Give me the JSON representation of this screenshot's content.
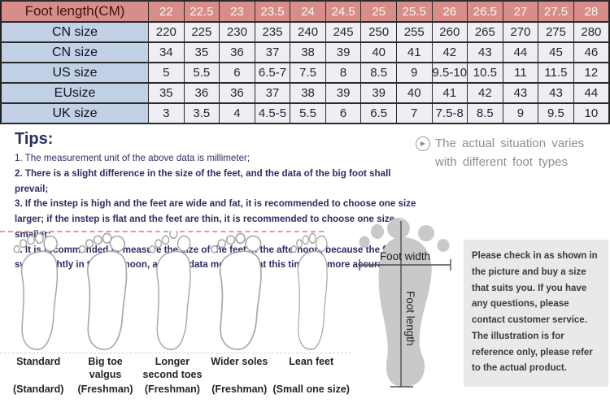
{
  "table": {
    "header_label": "Foot length(CM)",
    "header_values": [
      "22",
      "22.5",
      "23",
      "23.5",
      "24",
      "24.5",
      "25",
      "25.5",
      "26",
      "26.5",
      "27",
      "27.5",
      "28"
    ],
    "rows": [
      {
        "label": "CN size",
        "values": [
          "220",
          "225",
          "230",
          "235",
          "240",
          "245",
          "250",
          "255",
          "260",
          "265",
          "270",
          "275",
          "280"
        ]
      },
      {
        "label": "CN size",
        "values": [
          "34",
          "35",
          "36",
          "37",
          "38",
          "39",
          "40",
          "41",
          "42",
          "43",
          "44",
          "45",
          "46"
        ]
      },
      {
        "label": "US size",
        "values": [
          "5",
          "5.5",
          "6",
          "6.5-7",
          "7.5",
          "8",
          "8.5",
          "9",
          "9.5-10",
          "10.5",
          "11",
          "11.5",
          "12"
        ]
      },
      {
        "label": "EUsize",
        "values": [
          "35",
          "36",
          "36",
          "37",
          "38",
          "39",
          "39",
          "40",
          "41",
          "42",
          "43",
          "43",
          "44"
        ]
      },
      {
        "label": "UK size",
        "values": [
          "3",
          "3.5",
          "4",
          "4.5-5",
          "5.5",
          "6",
          "6.5",
          "7",
          "7.5-8",
          "8.5",
          "9",
          "9.5",
          "10"
        ]
      }
    ]
  },
  "tips": {
    "title": "Tips:",
    "lines": [
      "1. The measurement unit of the above data is millimeter;",
      "2. There is a slight difference in the size of the feet, and the data of the big foot shall prevail;",
      "3. If the instep is high and the feet are wide and fat, it is recommended to choose one size larger; if the instep is flat and the feet are thin, it is recommended to choose one size smaller;",
      "4. It is recommended to measure the size of the feet in the afternoon, because the feet will swell slightly in the afternoon, and the data measured at this time are more accurate."
    ]
  },
  "side_note": {
    "icon": "circled-play-icon",
    "icon_glyph": "▶",
    "text": "The actual situation varies with different foot types"
  },
  "foot_types": [
    {
      "name": "Standard",
      "sub": "(Standard)"
    },
    {
      "name": "Big toe valgus",
      "sub": "(Freshman)"
    },
    {
      "name": "Longer second toes",
      "sub": "(Freshman)"
    },
    {
      "name": "Wider soles",
      "sub": "(Freshman)"
    },
    {
      "name": "Lean feet",
      "sub": "(Small one size)"
    }
  ],
  "measure_diagram": {
    "width_label": "Foot width",
    "length_label": "Foot length"
  },
  "notice_box": {
    "text": "Please check in as shown in the picture and buy a size that suits you. If you have any questions, please contact customer service. The illustration is for reference only, please refer to the actual product."
  },
  "colors": {
    "header_bg": "#d78e8a",
    "header_text": "#fdf4f3",
    "header_label_text": "#42120e",
    "label_column_bg": "#c3d1e6",
    "cell_bg": "#f0eef5",
    "tips_text": "#2c2e64",
    "side_note_text": "#8e8e8e",
    "dashed_line": "#e59a93",
    "notice_box_bg": "#e9e9e9",
    "footprint_fill": "#c9c9c9"
  }
}
